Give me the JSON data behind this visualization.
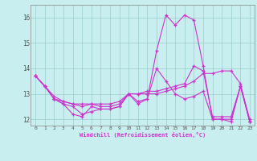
{
  "xlabel": "Windchill (Refroidissement éolien,°C)",
  "bg_color": "#c8eef0",
  "grid_color": "#99cccc",
  "line_color": "#cc33cc",
  "marker": "+",
  "x_ticks": [
    0,
    1,
    2,
    3,
    4,
    5,
    6,
    7,
    8,
    9,
    10,
    11,
    12,
    13,
    14,
    15,
    16,
    17,
    18,
    19,
    20,
    21,
    22,
    23
  ],
  "ylim": [
    11.75,
    16.5
  ],
  "yticks": [
    12,
    13,
    14,
    15,
    16
  ],
  "series": [
    [
      13.7,
      13.3,
      12.8,
      12.6,
      12.2,
      12.1,
      12.5,
      12.4,
      12.4,
      12.5,
      13.0,
      12.6,
      12.8,
      14.7,
      16.1,
      15.7,
      16.1,
      15.9,
      14.1,
      12.0,
      12.0,
      11.9,
      13.3,
      11.9
    ],
    [
      13.7,
      13.3,
      12.8,
      12.6,
      12.5,
      12.2,
      12.3,
      12.4,
      12.4,
      12.5,
      13.0,
      12.7,
      12.8,
      14.0,
      13.5,
      13.0,
      12.8,
      12.9,
      13.1,
      12.0,
      12.0,
      12.0,
      13.3,
      11.9
    ],
    [
      13.7,
      13.3,
      12.8,
      12.7,
      12.6,
      12.5,
      12.6,
      12.5,
      12.5,
      12.6,
      13.0,
      13.0,
      13.0,
      13.0,
      13.1,
      13.2,
      13.3,
      13.5,
      13.8,
      13.8,
      13.9,
      13.9,
      13.4,
      11.9
    ],
    [
      13.7,
      13.3,
      12.9,
      12.7,
      12.6,
      12.6,
      12.6,
      12.6,
      12.6,
      12.7,
      13.0,
      13.0,
      13.1,
      13.1,
      13.2,
      13.3,
      13.4,
      14.1,
      13.9,
      12.1,
      12.1,
      12.1,
      13.3,
      12.0
    ]
  ]
}
